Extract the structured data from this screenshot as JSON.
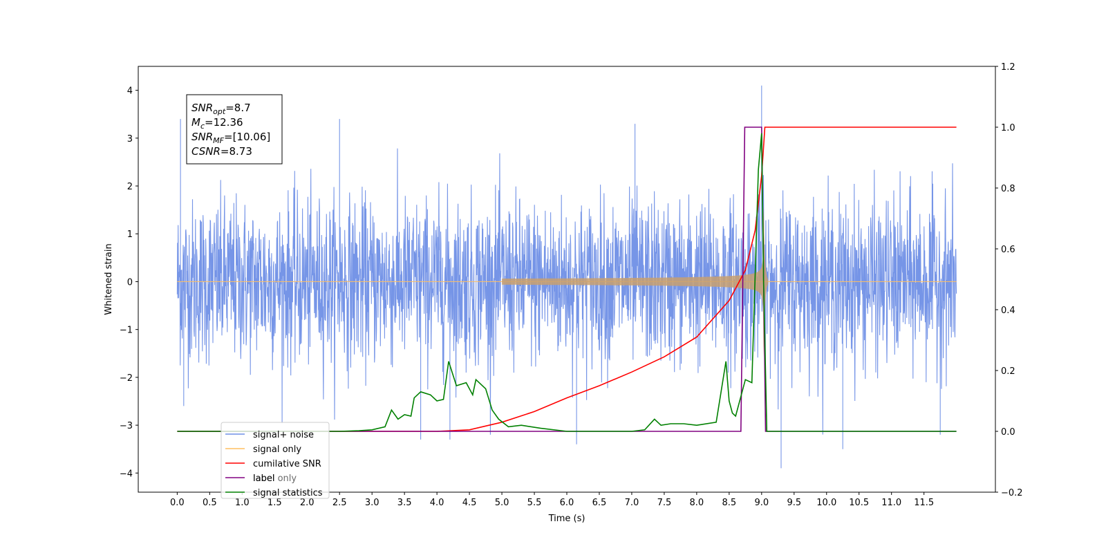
{
  "chart_data": {
    "type": "line",
    "xlabel": "Time (s)",
    "ylabel": "Whitened strain",
    "xlim": [
      -0.6,
      12.6
    ],
    "ylim": [
      -4.4,
      4.5
    ],
    "y2lim": [
      -0.2,
      1.2
    ],
    "x_ticks": [
      0.0,
      0.5,
      1.0,
      1.5,
      2.0,
      2.5,
      3.0,
      3.5,
      4.0,
      4.5,
      5.0,
      5.5,
      6.0,
      6.5,
      7.0,
      7.5,
      8.0,
      8.5,
      9.0,
      9.5,
      10.0,
      10.5,
      11.0,
      11.5
    ],
    "x_tick_labels": [
      "0.0",
      "0.5",
      "1.0",
      "1.5",
      "2.0",
      "2.5",
      "3.0",
      "3.5",
      "4.0",
      "4.5",
      "5.0",
      "5.5",
      "6.0",
      "6.5",
      "7.0",
      "7.5",
      "8.0",
      "8.5",
      "9.0",
      "9.5",
      "10.0",
      "10.5",
      "11.0",
      "11.5"
    ],
    "y_ticks": [
      -4,
      -3,
      -2,
      -1,
      0,
      1,
      2,
      3,
      4
    ],
    "y_tick_labels": [
      "−4",
      "−3",
      "−2",
      "−1",
      "0",
      "1",
      "2",
      "3",
      "4"
    ],
    "y2_ticks": [
      -0.2,
      0.0,
      0.2,
      0.4,
      0.6,
      0.8,
      1.0,
      1.2
    ],
    "y2_tick_labels": [
      "−0.2",
      "0.0",
      "0.2",
      "0.4",
      "0.6",
      "0.8",
      "1.0",
      "1.2"
    ],
    "annotation": [
      {
        "main": "SNR",
        "sub": "opt",
        "rest": "=8.7"
      },
      {
        "main": "M",
        "sub": "c",
        "rest": "=12.36"
      },
      {
        "main": "SNR",
        "sub": "MF",
        "rest": "=[10.06]"
      },
      {
        "main": "CSNR",
        "sub": "",
        "rest": "=8.73"
      }
    ],
    "legend": {
      "location": "lower-left",
      "entries": [
        {
          "label": "signal+ noise",
          "color": "#6f8fe6"
        },
        {
          "label": "signal only",
          "color": "#ffbf60"
        },
        {
          "label": "cumilative SNR",
          "color": "#ff0000"
        },
        {
          "label": "label",
          "color": "#800080"
        },
        {
          "label": "label only",
          "color": "#800080"
        },
        {
          "label": "signal statistics",
          "color": "#008000"
        }
      ]
    },
    "series": [
      {
        "name": "signal+ noise",
        "axis": "left",
        "color": "#6f8fe6",
        "description": "noise band from x=0.0 to 12.0, amplitude envelope about ±2.2 with spikes; peak 4.1 near 9.0, dip -3.9 near 9.3",
        "x_range": [
          0.0,
          12.0
        ],
        "spikes": [
          [
            0.05,
            3.4
          ],
          [
            0.1,
            -2.6
          ],
          [
            2.5,
            3.4
          ],
          [
            3.75,
            -3.3
          ],
          [
            4.2,
            -3.3
          ],
          [
            6.15,
            -3.4
          ],
          [
            7.05,
            3.3
          ],
          [
            9.0,
            4.1
          ],
          [
            9.3,
            -3.9
          ],
          [
            10.25,
            -3.5
          ],
          [
            11.75,
            -3.2
          ]
        ]
      },
      {
        "name": "signal only",
        "axis": "left",
        "color": "#ffbf60",
        "description": "chirp growing toward merger near x=9.0, amplitude about 0.6 at 8.7 and about 2.6 at 9.0",
        "x_range": [
          0.0,
          12.0
        ],
        "merger": 9.02
      },
      {
        "name": "cumilative SNR",
        "axis": "right",
        "color": "#ff0000",
        "x": [
          0.0,
          4.0,
          4.5,
          5.0,
          5.5,
          6.0,
          6.5,
          7.0,
          7.5,
          8.0,
          8.5,
          8.75,
          8.9,
          9.0,
          9.05,
          12.0
        ],
        "y": [
          0.0,
          0.0,
          0.005,
          0.03,
          0.065,
          0.11,
          0.15,
          0.195,
          0.245,
          0.31,
          0.43,
          0.53,
          0.66,
          0.84,
          1.0,
          1.0
        ]
      },
      {
        "name": "label",
        "axis": "right",
        "color": "#800080",
        "x": [
          0.0,
          8.68,
          8.74,
          9.0,
          9.06,
          12.0
        ],
        "y": [
          0.0,
          0.0,
          1.0,
          1.0,
          0.0,
          0.0
        ]
      },
      {
        "name": "signal statistics",
        "axis": "right",
        "color": "#008000",
        "x": [
          0.0,
          2.0,
          2.5,
          2.8,
          3.0,
          3.2,
          3.3,
          3.4,
          3.5,
          3.6,
          3.65,
          3.75,
          3.9,
          4.0,
          4.1,
          4.18,
          4.3,
          4.45,
          4.55,
          4.6,
          4.75,
          4.85,
          4.95,
          5.1,
          5.3,
          5.6,
          6.0,
          7.0,
          7.2,
          7.35,
          7.45,
          7.6,
          7.8,
          8.0,
          8.3,
          8.45,
          8.5,
          8.55,
          8.6,
          8.75,
          8.85,
          8.95,
          9.0,
          9.03,
          9.08,
          9.12,
          12.0
        ],
        "y": [
          0.0,
          0.0,
          0.0,
          0.002,
          0.005,
          0.015,
          0.07,
          0.04,
          0.055,
          0.05,
          0.11,
          0.13,
          0.12,
          0.1,
          0.105,
          0.23,
          0.15,
          0.16,
          0.12,
          0.17,
          0.14,
          0.07,
          0.04,
          0.015,
          0.02,
          0.01,
          0.0,
          0.0,
          0.005,
          0.04,
          0.02,
          0.025,
          0.025,
          0.02,
          0.03,
          0.23,
          0.1,
          0.06,
          0.05,
          0.17,
          0.16,
          0.86,
          0.98,
          0.5,
          0.0,
          0.0,
          0.0
        ]
      }
    ]
  }
}
